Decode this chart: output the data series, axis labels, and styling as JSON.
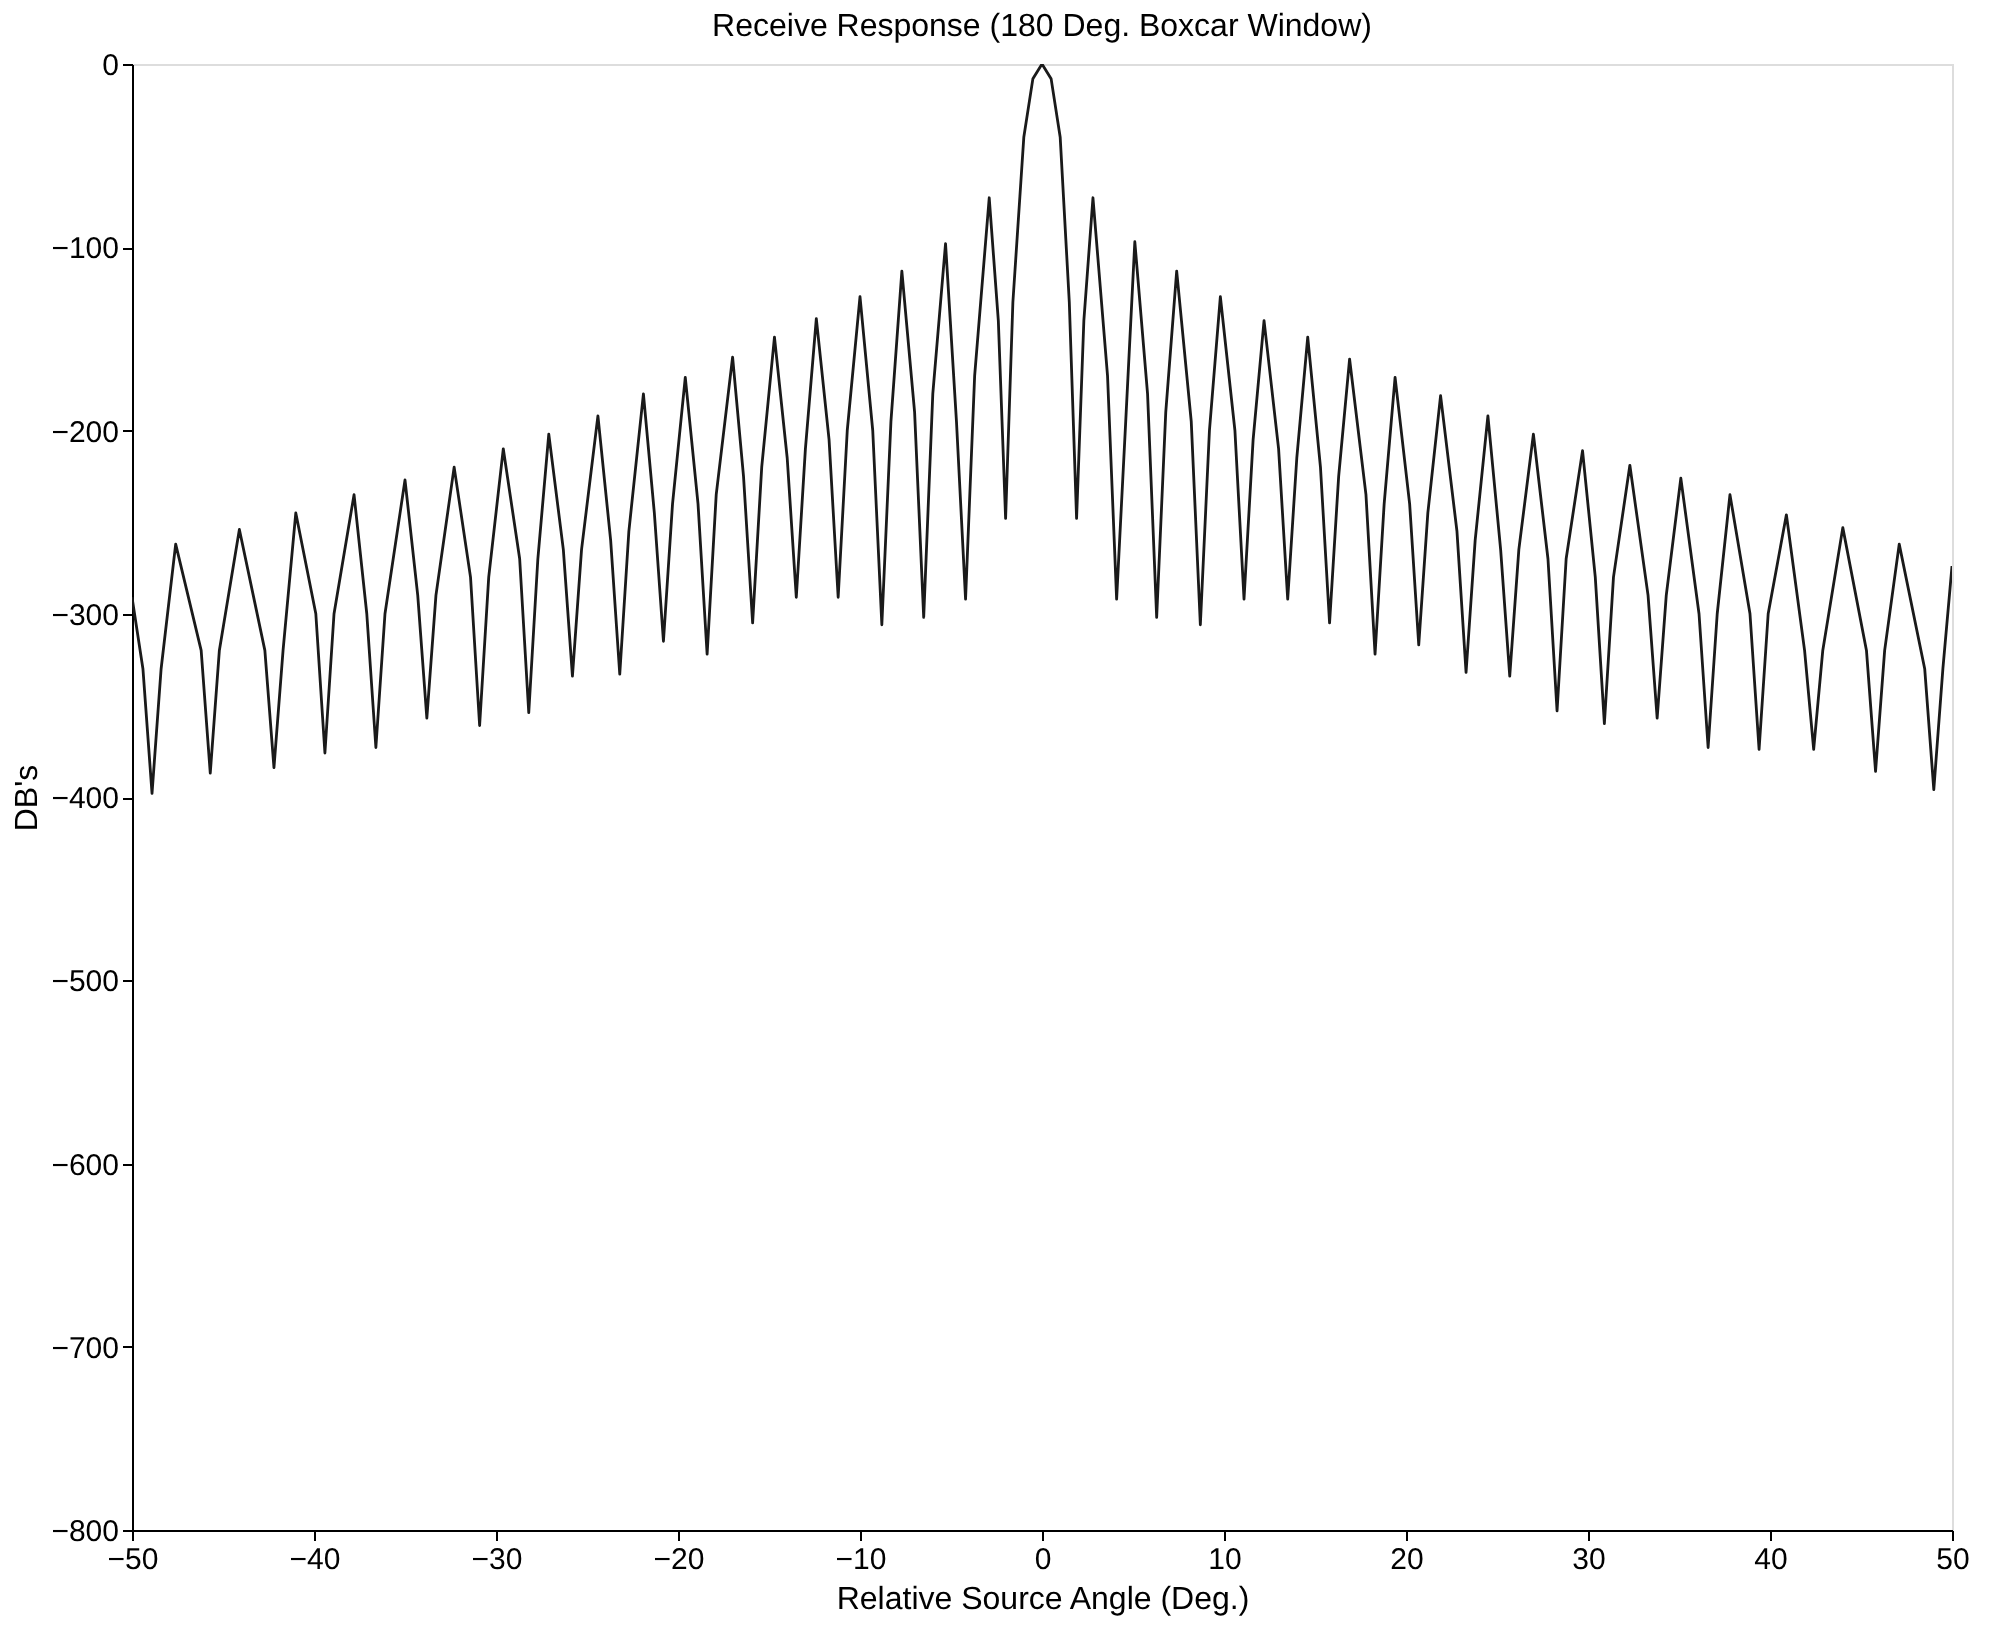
{
  "chart_data": {
    "type": "line",
    "title": "Receive Response (180 Deg. Boxcar Window)",
    "xlabel": "Relative Source Angle (Deg.)",
    "ylabel": "DB's",
    "xlim": [
      -50,
      50
    ],
    "xticks": [
      -50,
      -40,
      -30,
      -20,
      -10,
      0,
      10,
      20,
      30,
      40,
      50
    ],
    "ylim": [
      -800,
      0
    ],
    "yticks": [
      -800,
      -700,
      -600,
      -500,
      -400,
      -300,
      -200,
      -100,
      0
    ],
    "grid": false,
    "marker": "none",
    "line_style": "solid",
    "series": [
      {
        "color": "#1a1a1a",
        "x": [
          -50,
          -49.4,
          -48.9,
          -48.4,
          -47.6,
          -46.2,
          -45.7,
          -45.2,
          -44.1,
          -42.7,
          -42.2,
          -41.7,
          -41.0,
          -39.9,
          -39.4,
          -38.9,
          -37.8,
          -37.1,
          -36.6,
          -36.1,
          -35.0,
          -34.3,
          -33.8,
          -33.3,
          -32.3,
          -31.4,
          -30.9,
          -30.4,
          -29.6,
          -28.7,
          -28.2,
          -27.7,
          -27.1,
          -26.3,
          -25.8,
          -25.3,
          -24.4,
          -23.7,
          -23.2,
          -22.7,
          -21.9,
          -21.3,
          -20.8,
          -20.3,
          -19.6,
          -18.9,
          -18.4,
          -17.9,
          -17.0,
          -16.4,
          -15.9,
          -15.4,
          -14.7,
          -14.0,
          -13.5,
          -13.0,
          -12.4,
          -11.7,
          -11.2,
          -10.7,
          -10.0,
          -9.3,
          -8.8,
          -8.3,
          -7.7,
          -7.0,
          -6.5,
          -6.0,
          -5.3,
          -4.7,
          -4.2,
          -3.7,
          -2.9,
          -2.4,
          -2.0,
          -1.6,
          -1.0,
          -0.5,
          0,
          0.5,
          1.0,
          1.5,
          1.9,
          2.3,
          2.8,
          3.6,
          4.1,
          4.6,
          5.1,
          5.8,
          6.3,
          6.8,
          7.4,
          8.2,
          8.7,
          9.2,
          9.8,
          10.6,
          11.1,
          11.6,
          12.2,
          13.0,
          13.5,
          14.0,
          14.6,
          15.3,
          15.8,
          16.3,
          16.9,
          17.8,
          18.3,
          18.8,
          19.4,
          20.2,
          20.7,
          21.2,
          21.9,
          22.8,
          23.3,
          23.8,
          24.5,
          25.2,
          25.7,
          26.2,
          27.0,
          27.8,
          28.3,
          28.8,
          29.7,
          30.4,
          30.9,
          31.4,
          32.3,
          33.3,
          33.8,
          34.3,
          35.1,
          36.1,
          36.6,
          37.1,
          37.8,
          38.9,
          39.4,
          39.9,
          40.9,
          41.9,
          42.4,
          42.9,
          44.0,
          45.3,
          45.8,
          46.3,
          47.1,
          48.5,
          49.0,
          49.5,
          50
        ],
        "values": [
          -291,
          -330,
          -398,
          -330,
          -262,
          -320,
          -387,
          -320,
          -254,
          -320,
          -384,
          -320,
          -245,
          -300,
          -376,
          -300,
          -235,
          -300,
          -373,
          -300,
          -227,
          -290,
          -357,
          -290,
          -220,
          -280,
          -361,
          -280,
          -210,
          -270,
          -354,
          -270,
          -202,
          -265,
          -334,
          -265,
          -192,
          -260,
          -333,
          -255,
          -180,
          -245,
          -315,
          -240,
          -171,
          -240,
          -322,
          -235,
          -160,
          -225,
          -305,
          -220,
          -149,
          -215,
          -291,
          -210,
          -139,
          -205,
          -291,
          -200,
          -127,
          -200,
          -306,
          -195,
          -113,
          -190,
          -302,
          -180,
          -98,
          -195,
          -292,
          -170,
          -73,
          -140,
          -248,
          -130,
          -40,
          -8,
          0,
          -8,
          -40,
          -130,
          -248,
          -140,
          -73,
          -170,
          -292,
          -195,
          -97,
          -180,
          -302,
          -190,
          -113,
          -195,
          -306,
          -200,
          -127,
          -200,
          -292,
          -205,
          -140,
          -210,
          -292,
          -215,
          -149,
          -220,
          -305,
          -225,
          -161,
          -235,
          -322,
          -240,
          -171,
          -240,
          -317,
          -245,
          -181,
          -255,
          -332,
          -260,
          -192,
          -265,
          -334,
          -265,
          -202,
          -270,
          -353,
          -270,
          -211,
          -280,
          -360,
          -280,
          -219,
          -290,
          -357,
          -290,
          -226,
          -300,
          -373,
          -300,
          -235,
          -300,
          -374,
          -300,
          -246,
          -320,
          -374,
          -320,
          -253,
          -320,
          -386,
          -320,
          -262,
          -330,
          -396,
          -330,
          -274
        ]
      }
    ]
  }
}
